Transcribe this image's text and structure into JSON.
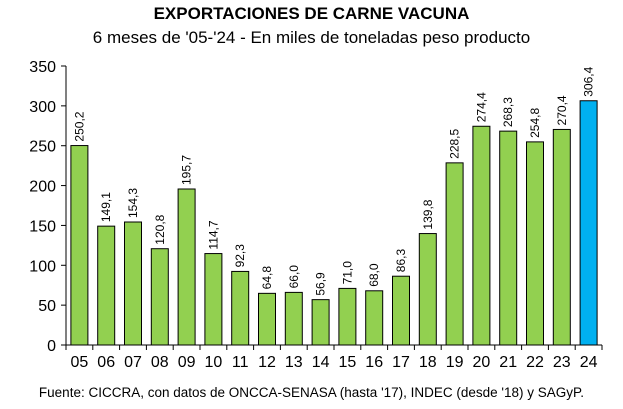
{
  "chart_data": {
    "type": "bar",
    "title": "EXPORTACIONES DE CARNE VACUNA",
    "subtitle": "6 meses de '05-'24 - En miles de toneladas peso producto",
    "source": "Fuente: CICCRA, con datos de ONCCA-SENASA (hasta '17), INDEC (desde '18) y SAGyP.",
    "categories": [
      "05",
      "06",
      "07",
      "08",
      "09",
      "10",
      "11",
      "12",
      "13",
      "14",
      "15",
      "16",
      "17",
      "18",
      "19",
      "20",
      "21",
      "22",
      "23",
      "24"
    ],
    "values": [
      250.2,
      149.1,
      154.3,
      120.8,
      195.7,
      114.7,
      92.3,
      64.8,
      66.0,
      56.9,
      71.0,
      68.0,
      86.3,
      139.8,
      228.5,
      274.4,
      268.3,
      254.8,
      270.4,
      306.4
    ],
    "data_labels": [
      "250,2",
      "149,1",
      "154,3",
      "120,8",
      "195,7",
      "114,7",
      "92,3",
      "64,8",
      "66,0",
      "56,9",
      "71,0",
      "68,0",
      "86,3",
      "139,8",
      "228,5",
      "274,4",
      "268,3",
      "254,8",
      "270,4",
      "306,4"
    ],
    "ylim": [
      0,
      350
    ],
    "yticks": [
      0,
      50,
      100,
      150,
      200,
      250,
      300,
      350
    ],
    "grid": false,
    "legend": "none",
    "colors": {
      "bar": "#92D050",
      "highlight": "#00B0F0",
      "bar_stroke": "#000000"
    },
    "highlight_index": 19
  }
}
